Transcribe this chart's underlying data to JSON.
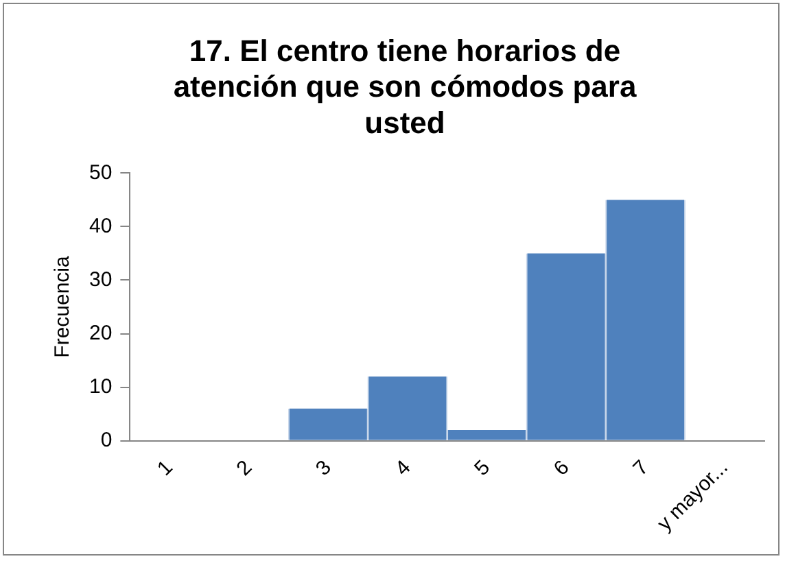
{
  "chart_data": {
    "type": "bar",
    "title": "17. El centro tiene horarios de atención que son cómodos para usted",
    "ylabel": "Frecuencia",
    "categories": [
      "1",
      "2",
      "3",
      "4",
      "5",
      "6",
      "7",
      "y mayor..."
    ],
    "values": [
      0,
      0,
      6,
      12,
      2,
      35,
      45,
      0
    ],
    "color": "#4f81bd",
    "ylim": [
      0,
      50
    ],
    "yticks": [
      0,
      10,
      20,
      30,
      40,
      50
    ],
    "grid": false,
    "legend": false
  }
}
